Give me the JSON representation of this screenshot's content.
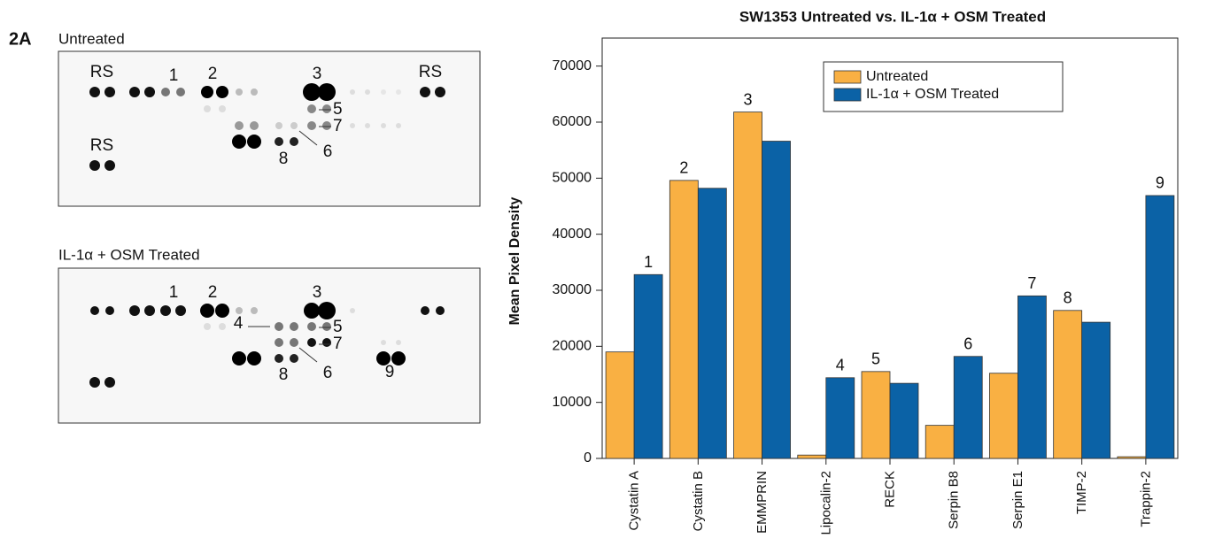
{
  "figure": {
    "panel_label": "2A",
    "blots": [
      {
        "title": "Untreated",
        "labels": [
          "RS",
          "RS",
          "RS",
          "1",
          "2",
          "3",
          "5",
          "7",
          "6",
          "8"
        ]
      },
      {
        "title": "IL-1α + OSM Treated",
        "labels": [
          "1",
          "2",
          "3",
          "4",
          "5",
          "7",
          "6",
          "8",
          "9"
        ]
      }
    ]
  },
  "chart_data": {
    "type": "bar",
    "title": "SW1353 Untreated vs. IL-1α + OSM Treated",
    "y_label": "Mean Pixel Density",
    "categories": [
      "Cystatin A",
      "Cystatin B",
      "EMMPRIN",
      "Lipocalin-2",
      "RECK",
      "Serpin B8",
      "Serpin E1",
      "TIMP-2",
      "Trappin-2"
    ],
    "series": [
      {
        "name": "Untreated",
        "color": "#f9b043",
        "values": [
          19000,
          49600,
          61800,
          600,
          15500,
          5900,
          15200,
          26400,
          300
        ]
      },
      {
        "name": "IL-1α + OSM Treated",
        "color": "#0b62a6",
        "values": [
          32800,
          48200,
          56600,
          14400,
          13400,
          18200,
          29000,
          24300,
          46900
        ]
      }
    ],
    "annotations": [
      {
        "text": "1",
        "category": "Cystatin A",
        "series": "IL-1α + OSM Treated"
      },
      {
        "text": "2",
        "category": "Cystatin B",
        "series": "Untreated"
      },
      {
        "text": "3",
        "category": "EMMPRIN",
        "series": "Untreated"
      },
      {
        "text": "4",
        "category": "Lipocalin-2",
        "series": "IL-1α + OSM Treated"
      },
      {
        "text": "5",
        "category": "RECK",
        "series": "Untreated"
      },
      {
        "text": "6",
        "category": "Serpin B8",
        "series": "IL-1α + OSM Treated"
      },
      {
        "text": "7",
        "category": "Serpin E1",
        "series": "IL-1α + OSM Treated"
      },
      {
        "text": "8",
        "category": "TIMP-2",
        "series": "Untreated"
      },
      {
        "text": "9",
        "category": "Trappin-2",
        "series": "IL-1α + OSM Treated"
      }
    ],
    "ylim": [
      0,
      75000
    ],
    "yticks": [
      0,
      10000,
      20000,
      30000,
      40000,
      50000,
      60000,
      70000
    ],
    "legend": "upper-center"
  }
}
